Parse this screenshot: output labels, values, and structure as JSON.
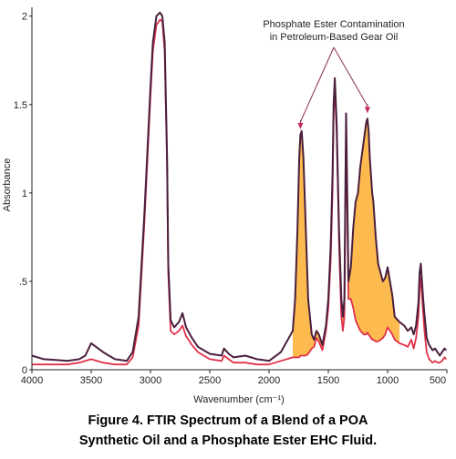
{
  "chart_data": {
    "type": "line",
    "title": "",
    "xlabel": "Wavenumber (cm⁻¹)",
    "ylabel": "Absorbance",
    "xlim": [
      4000,
      500
    ],
    "ylim": [
      0,
      2.05
    ],
    "x_ticks": [
      4000,
      3500,
      3000,
      2500,
      2000,
      1500,
      1000,
      500
    ],
    "y_ticks": [
      0,
      0.5,
      1,
      1.5,
      2
    ],
    "y_tick_labels": [
      "0",
      ".5",
      "1",
      "1.5",
      "2"
    ],
    "grid": false,
    "legend": "none",
    "colors": {
      "blend": "#4a1f3d",
      "poa": "#e0304a",
      "fill": "#fdbb4f",
      "axis": "#231f20"
    },
    "series": [
      {
        "name": "",
        "role": "blend",
        "x": [
          4000,
          3900,
          3800,
          3700,
          3600,
          3550,
          3500,
          3400,
          3300,
          3200,
          3150,
          3100,
          3050,
          3000,
          2980,
          2950,
          2920,
          2900,
          2880,
          2860,
          2850,
          2830,
          2800,
          2760,
          2730,
          2700,
          2650,
          2600,
          2500,
          2400,
          2380,
          2340,
          2300,
          2200,
          2100,
          2000,
          1900,
          1800,
          1780,
          1760,
          1745,
          1735,
          1725,
          1710,
          1690,
          1670,
          1640,
          1620,
          1600,
          1580,
          1550,
          1520,
          1500,
          1480,
          1465,
          1455,
          1445,
          1430,
          1420,
          1410,
          1400,
          1390,
          1377,
          1365,
          1350,
          1330,
          1310,
          1290,
          1270,
          1250,
          1230,
          1200,
          1180,
          1170,
          1160,
          1150,
          1140,
          1130,
          1120,
          1100,
          1080,
          1060,
          1040,
          1020,
          1000,
          980,
          960,
          940,
          900,
          860,
          830,
          800,
          780,
          760,
          740,
          730,
          720,
          710,
          700,
          690,
          680,
          670,
          650,
          620,
          600,
          580,
          560,
          540,
          520,
          505
        ],
        "y": [
          0.08,
          0.06,
          0.055,
          0.05,
          0.06,
          0.08,
          0.15,
          0.1,
          0.06,
          0.05,
          0.1,
          0.3,
          0.9,
          1.6,
          1.85,
          2.0,
          2.02,
          2.0,
          1.85,
          1.2,
          0.6,
          0.28,
          0.24,
          0.27,
          0.32,
          0.24,
          0.18,
          0.13,
          0.09,
          0.08,
          0.12,
          0.09,
          0.07,
          0.08,
          0.06,
          0.05,
          0.1,
          0.22,
          0.4,
          0.8,
          1.2,
          1.33,
          1.35,
          1.2,
          0.8,
          0.4,
          0.2,
          0.17,
          0.22,
          0.2,
          0.14,
          0.25,
          0.4,
          0.7,
          1.1,
          1.5,
          1.65,
          1.4,
          1.1,
          0.8,
          0.6,
          0.4,
          0.3,
          0.4,
          1.45,
          0.5,
          0.58,
          0.8,
          0.95,
          1.0,
          1.15,
          1.3,
          1.4,
          1.42,
          1.35,
          1.2,
          1.1,
          1.0,
          0.95,
          0.75,
          0.6,
          0.55,
          0.5,
          0.52,
          0.58,
          0.5,
          0.42,
          0.3,
          0.27,
          0.25,
          0.22,
          0.24,
          0.2,
          0.25,
          0.38,
          0.55,
          0.6,
          0.5,
          0.4,
          0.32,
          0.25,
          0.18,
          0.14,
          0.11,
          0.12,
          0.1,
          0.08,
          0.1,
          0.12,
          0.11
        ]
      },
      {
        "name": "",
        "role": "poa",
        "x": [
          4000,
          3900,
          3800,
          3700,
          3600,
          3550,
          3500,
          3400,
          3300,
          3200,
          3150,
          3100,
          3050,
          3000,
          2980,
          2950,
          2920,
          2900,
          2880,
          2860,
          2850,
          2830,
          2800,
          2760,
          2730,
          2700,
          2650,
          2600,
          2500,
          2400,
          2380,
          2340,
          2300,
          2200,
          2100,
          2000,
          1900,
          1800,
          1780,
          1760,
          1745,
          1735,
          1725,
          1710,
          1690,
          1670,
          1640,
          1620,
          1600,
          1580,
          1550,
          1520,
          1500,
          1480,
          1465,
          1455,
          1445,
          1430,
          1420,
          1410,
          1400,
          1390,
          1377,
          1365,
          1350,
          1330,
          1310,
          1290,
          1270,
          1250,
          1230,
          1200,
          1180,
          1170,
          1160,
          1150,
          1140,
          1130,
          1120,
          1100,
          1080,
          1060,
          1040,
          1020,
          1000,
          980,
          960,
          940,
          900,
          860,
          830,
          800,
          780,
          760,
          740,
          730,
          720,
          710,
          700,
          690,
          680,
          670,
          650,
          620,
          600,
          580,
          560,
          540,
          520,
          505
        ],
        "y": [
          0.03,
          0.03,
          0.03,
          0.03,
          0.04,
          0.05,
          0.06,
          0.04,
          0.03,
          0.03,
          0.07,
          0.25,
          0.85,
          1.55,
          1.8,
          1.95,
          1.98,
          1.97,
          1.8,
          1.15,
          0.55,
          0.22,
          0.2,
          0.22,
          0.25,
          0.19,
          0.14,
          0.1,
          0.06,
          0.05,
          0.08,
          0.06,
          0.04,
          0.04,
          0.03,
          0.03,
          0.05,
          0.07,
          0.07,
          0.07,
          0.07,
          0.08,
          0.08,
          0.08,
          0.08,
          0.09,
          0.12,
          0.13,
          0.18,
          0.16,
          0.11,
          0.22,
          0.35,
          0.62,
          1.0,
          1.45,
          1.6,
          1.35,
          1.05,
          0.72,
          0.5,
          0.3,
          0.22,
          0.3,
          1.38,
          0.4,
          0.4,
          0.35,
          0.28,
          0.25,
          0.22,
          0.2,
          0.2,
          0.21,
          0.2,
          0.19,
          0.18,
          0.17,
          0.17,
          0.16,
          0.16,
          0.17,
          0.18,
          0.2,
          0.24,
          0.22,
          0.2,
          0.17,
          0.15,
          0.14,
          0.13,
          0.17,
          0.12,
          0.18,
          0.3,
          0.46,
          0.52,
          0.42,
          0.32,
          0.23,
          0.16,
          0.1,
          0.06,
          0.04,
          0.05,
          0.04,
          0.04,
          0.05,
          0.07,
          0.06
        ]
      }
    ],
    "annotations": [
      {
        "text_lines": [
          "Phosphate Ester Contamination",
          "in Petroleum-Based Gear Oil"
        ],
        "targets": [
          [
            1735,
            1.34
          ],
          [
            1170,
            1.43
          ]
        ]
      }
    ]
  },
  "caption": {
    "line1": "Figure 4. FTIR Spectrum of a Blend of a POA",
    "line2": "Synthetic Oil and a Phosphate Ester EHC Fluid."
  }
}
